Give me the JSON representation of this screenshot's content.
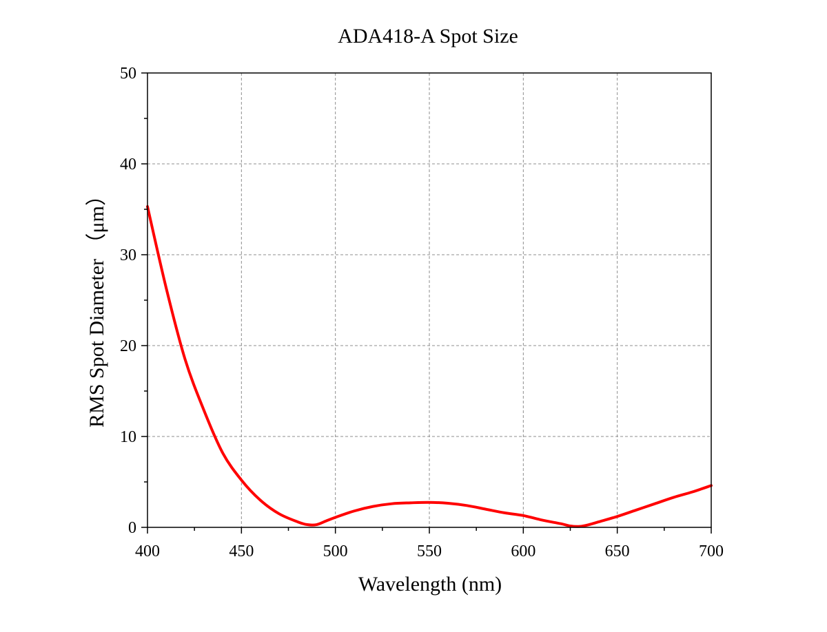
{
  "chart_data": {
    "type": "line",
    "title": "ADA418-A Spot Size",
    "xlabel": "Wavelength (nm)",
    "ylabel": "RMS Spot Diameter （μm）",
    "xlim": [
      400,
      700
    ],
    "ylim": [
      0,
      50
    ],
    "xticks": [
      400,
      450,
      500,
      550,
      600,
      650,
      700
    ],
    "yticks": [
      0,
      10,
      20,
      30,
      40,
      50
    ],
    "xtick_labels": [
      "400",
      "450",
      "500",
      "550",
      "600",
      "650",
      "700"
    ],
    "ytick_labels": [
      "0",
      "10",
      "20",
      "30",
      "40",
      "50"
    ],
    "grid": true,
    "legend": "none",
    "series": [
      {
        "color": "#ff0000",
        "x": [
          400,
          410,
          420,
          430,
          440,
          450,
          460,
          470,
          480,
          485,
          490,
          495,
          500,
          510,
          520,
          530,
          540,
          550,
          560,
          570,
          580,
          590,
          600,
          610,
          620,
          625,
          630,
          635,
          640,
          650,
          660,
          670,
          680,
          690,
          700
        ],
        "y": [
          35.3,
          26.3,
          18.5,
          12.9,
          8.2,
          5.2,
          3.0,
          1.5,
          0.6,
          0.3,
          0.3,
          0.7,
          1.1,
          1.8,
          2.3,
          2.6,
          2.7,
          2.75,
          2.65,
          2.4,
          2.0,
          1.6,
          1.3,
          0.8,
          0.4,
          0.15,
          0.1,
          0.3,
          0.6,
          1.2,
          1.9,
          2.6,
          3.3,
          3.9,
          4.6
        ]
      }
    ]
  }
}
